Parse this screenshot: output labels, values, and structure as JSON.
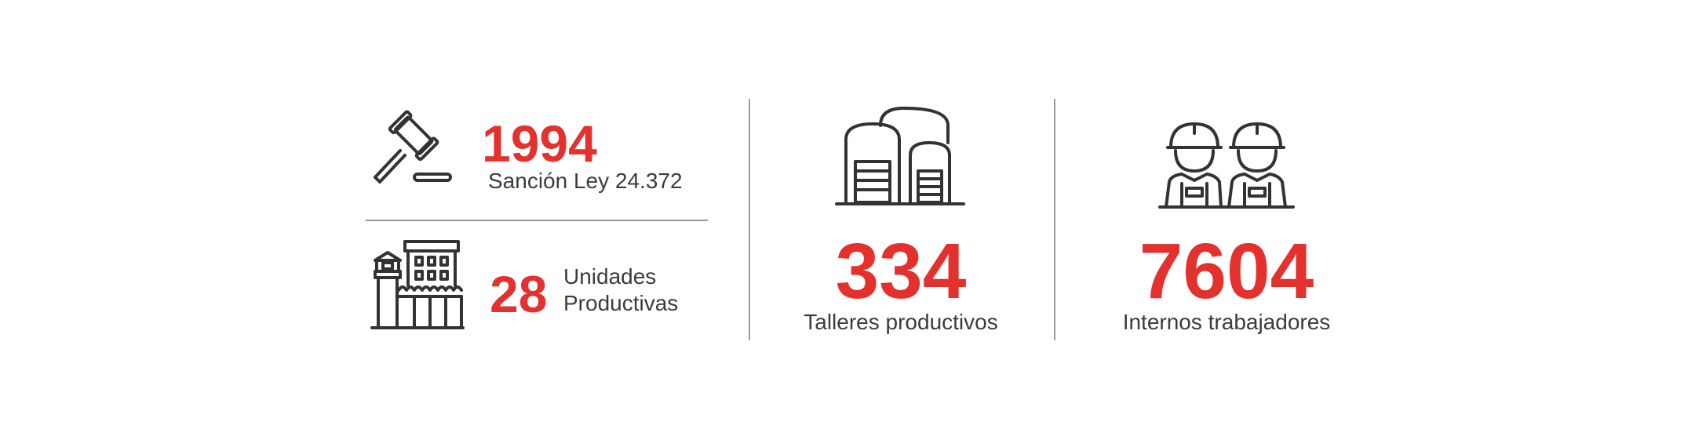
{
  "stats": {
    "law": {
      "value": "1994",
      "label": "Sanción Ley 24.372",
      "icon": "gavel-icon"
    },
    "units": {
      "value": "28",
      "label_line1": "Unidades",
      "label_line2": "Productivas",
      "icon": "prison-building-icon"
    },
    "workshops": {
      "value": "334",
      "label": "Talleres productivos",
      "icon": "warehouse-icon"
    },
    "workers": {
      "value": "7604",
      "label": "Internos trabajadores",
      "icon": "workers-icon"
    }
  },
  "colors": {
    "accent": "#e3312d",
    "text": "#3b3b3b",
    "icon": "#333333",
    "divider": "#9a9a9a"
  }
}
